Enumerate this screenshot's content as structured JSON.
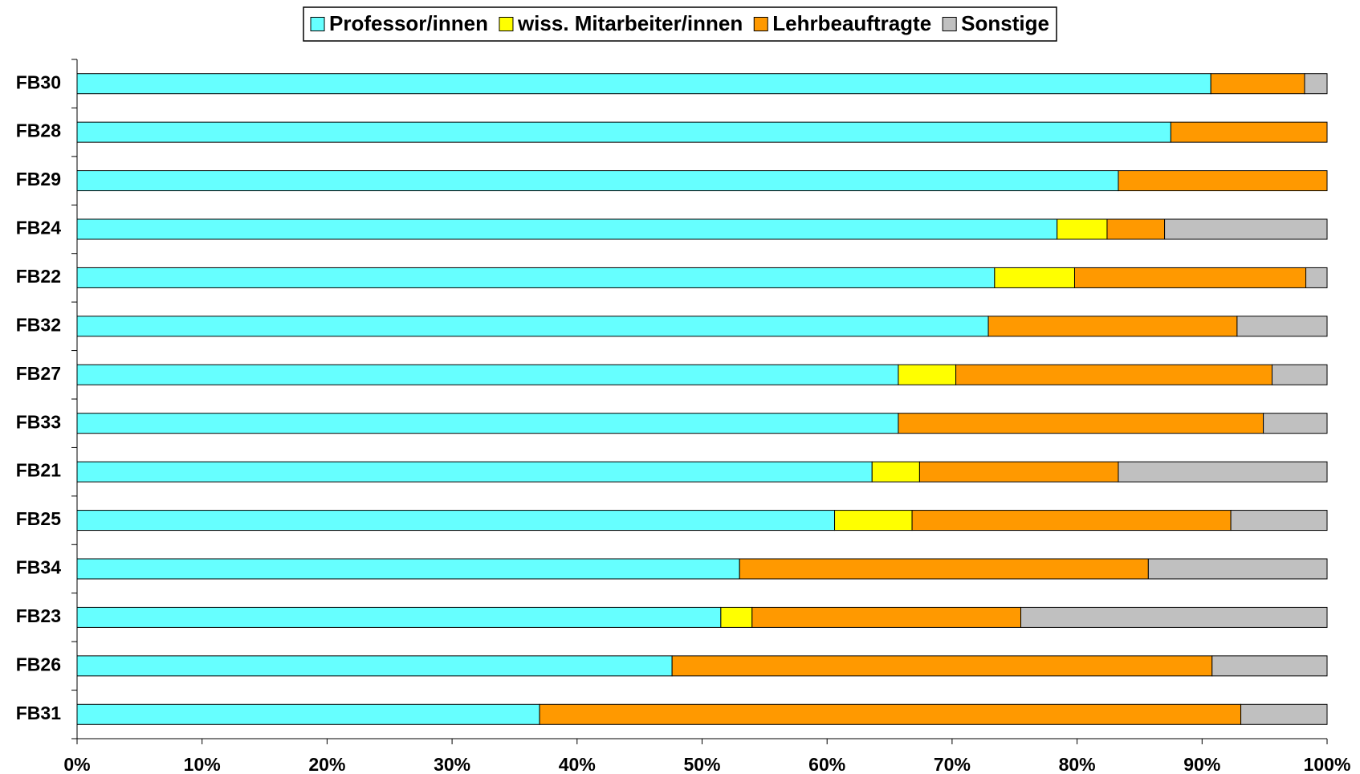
{
  "chart_data": {
    "type": "stacked_bar_horizontal",
    "categories": [
      "FB30",
      "FB28",
      "FB29",
      "FB24",
      "FB22",
      "FB32",
      "FB27",
      "FB33",
      "FB21",
      "FB25",
      "FB34",
      "FB23",
      "FB26",
      "FB31"
    ],
    "series": [
      {
        "name": "Professor/innen",
        "color": "#66ffff",
        "values": [
          90.7,
          87.5,
          83.3,
          78.4,
          73.4,
          72.9,
          65.7,
          65.7,
          63.6,
          60.6,
          53.0,
          51.5,
          47.6,
          37.0
        ]
      },
      {
        "name": "wiss. Mitarbeiter/innen",
        "color": "#ffff00",
        "values": [
          0,
          0,
          0,
          4.0,
          6.4,
          0,
          4.6,
          0,
          3.8,
          6.2,
          0,
          2.5,
          0,
          0
        ]
      },
      {
        "name": "Lehrbeauftragte",
        "color": "#ff9900",
        "values": [
          7.5,
          12.5,
          16.7,
          4.6,
          18.5,
          19.9,
          25.3,
          29.2,
          15.9,
          25.5,
          32.7,
          21.5,
          43.2,
          56.1
        ]
      },
      {
        "name": "Sonstige",
        "color": "#c0c0c0",
        "values": [
          1.8,
          0,
          0,
          13.0,
          1.7,
          7.2,
          4.4,
          5.1,
          16.7,
          7.7,
          14.3,
          24.5,
          9.2,
          6.9
        ]
      }
    ],
    "xlim": [
      0,
      100
    ],
    "xticks": [
      {
        "value": 0,
        "label": "0%"
      },
      {
        "value": 10,
        "label": "10%"
      },
      {
        "value": 20,
        "label": "20%"
      },
      {
        "value": 30,
        "label": "30%"
      },
      {
        "value": 40,
        "label": "40%"
      },
      {
        "value": 50,
        "label": "50%"
      },
      {
        "value": 60,
        "label": "60%"
      },
      {
        "value": 70,
        "label": "70%"
      },
      {
        "value": 80,
        "label": "80%"
      },
      {
        "value": 90,
        "label": "90%"
      },
      {
        "value": 100,
        "label": "100%"
      }
    ],
    "legend": "top"
  }
}
